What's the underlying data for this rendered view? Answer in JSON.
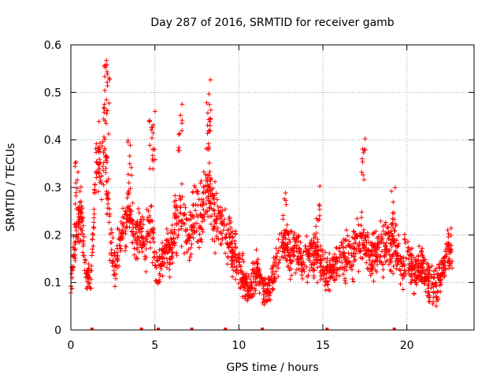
{
  "chart_data": {
    "type": "scatter",
    "title": "Day 287 of 2016, SRMTID for receiver gamb",
    "xlabel": "GPS time / hours",
    "ylabel": "SRMTID / TECUs",
    "xlim": [
      0,
      24
    ],
    "ylim": [
      0,
      0.6
    ],
    "x_ticks": [
      0,
      5,
      10,
      15,
      20
    ],
    "y_ticks": [
      0,
      0.1,
      0.2,
      0.3,
      0.4,
      0.5,
      0.6
    ],
    "x_tick_labels": [
      "0",
      "5",
      "10",
      "15",
      "20"
    ],
    "y_tick_labels": [
      "0",
      "0.1",
      "0.2",
      "0.3",
      "0.4",
      "0.5",
      "0.6"
    ],
    "grid": true,
    "marker": "+",
    "color": "#ff0000",
    "profile": {
      "x": [
        0.0,
        0.3,
        0.6,
        0.9,
        1.2,
        1.5,
        1.8,
        2.0,
        2.3,
        2.6,
        2.9,
        3.2,
        3.5,
        3.8,
        4.1,
        4.4,
        4.7,
        5.0,
        5.3,
        5.6,
        5.9,
        6.2,
        6.5,
        6.8,
        7.1,
        7.4,
        7.7,
        8.0,
        8.3,
        8.6,
        8.9,
        9.2,
        9.5,
        9.8,
        10.1,
        10.4,
        10.7,
        11.0,
        11.3,
        11.6,
        11.9,
        12.2,
        12.5,
        12.8,
        13.1,
        13.4,
        13.7,
        14.0,
        14.3,
        14.6,
        14.9,
        15.2,
        15.5,
        15.8,
        16.1,
        16.4,
        16.7,
        17.0,
        17.3,
        17.6,
        17.9,
        18.2,
        18.5,
        18.8,
        19.1,
        19.4,
        19.7,
        20.0,
        20.3,
        20.6,
        20.9,
        21.2,
        21.5,
        21.8,
        22.1,
        22.4,
        22.7
      ],
      "center": [
        0.09,
        0.22,
        0.25,
        0.12,
        0.1,
        0.36,
        0.32,
        0.42,
        0.22,
        0.12,
        0.18,
        0.22,
        0.25,
        0.18,
        0.2,
        0.18,
        0.24,
        0.15,
        0.13,
        0.17,
        0.15,
        0.22,
        0.26,
        0.22,
        0.2,
        0.25,
        0.24,
        0.28,
        0.3,
        0.22,
        0.22,
        0.2,
        0.18,
        0.15,
        0.12,
        0.1,
        0.08,
        0.13,
        0.1,
        0.08,
        0.09,
        0.14,
        0.17,
        0.18,
        0.16,
        0.17,
        0.15,
        0.15,
        0.15,
        0.16,
        0.14,
        0.12,
        0.13,
        0.14,
        0.15,
        0.15,
        0.16,
        0.18,
        0.2,
        0.16,
        0.16,
        0.16,
        0.17,
        0.18,
        0.18,
        0.17,
        0.14,
        0.15,
        0.13,
        0.12,
        0.14,
        0.11,
        0.1,
        0.09,
        0.12,
        0.16,
        0.17
      ],
      "spread": [
        0.02,
        0.07,
        0.06,
        0.03,
        0.03,
        0.05,
        0.08,
        0.1,
        0.07,
        0.04,
        0.05,
        0.06,
        0.05,
        0.05,
        0.06,
        0.05,
        0.07,
        0.05,
        0.04,
        0.05,
        0.05,
        0.07,
        0.08,
        0.07,
        0.06,
        0.07,
        0.07,
        0.08,
        0.07,
        0.07,
        0.06,
        0.05,
        0.05,
        0.05,
        0.04,
        0.04,
        0.03,
        0.05,
        0.04,
        0.03,
        0.03,
        0.04,
        0.05,
        0.05,
        0.05,
        0.05,
        0.04,
        0.05,
        0.05,
        0.05,
        0.04,
        0.04,
        0.04,
        0.04,
        0.05,
        0.05,
        0.05,
        0.06,
        0.07,
        0.05,
        0.05,
        0.05,
        0.05,
        0.05,
        0.06,
        0.05,
        0.05,
        0.05,
        0.04,
        0.04,
        0.05,
        0.04,
        0.04,
        0.04,
        0.04,
        0.05,
        0.05
      ]
    },
    "peaks": [
      {
        "x": 0.35,
        "y": 0.355
      },
      {
        "x": 1.6,
        "y": 0.44
      },
      {
        "x": 2.1,
        "y": 0.57
      },
      {
        "x": 2.2,
        "y": 0.53
      },
      {
        "x": 3.5,
        "y": 0.415
      },
      {
        "x": 4.8,
        "y": 0.45
      },
      {
        "x": 4.9,
        "y": 0.47
      },
      {
        "x": 6.5,
        "y": 0.485
      },
      {
        "x": 8.2,
        "y": 0.53
      },
      {
        "x": 8.25,
        "y": 0.5
      },
      {
        "x": 17.4,
        "y": 0.41
      },
      {
        "x": 19.2,
        "y": 0.3
      },
      {
        "x": 14.7,
        "y": 0.32
      },
      {
        "x": 12.7,
        "y": 0.3
      }
    ],
    "zero_markers_x": [
      1.25,
      4.2,
      5.2,
      7.2,
      9.2,
      11.4,
      15.25,
      19.25
    ]
  }
}
